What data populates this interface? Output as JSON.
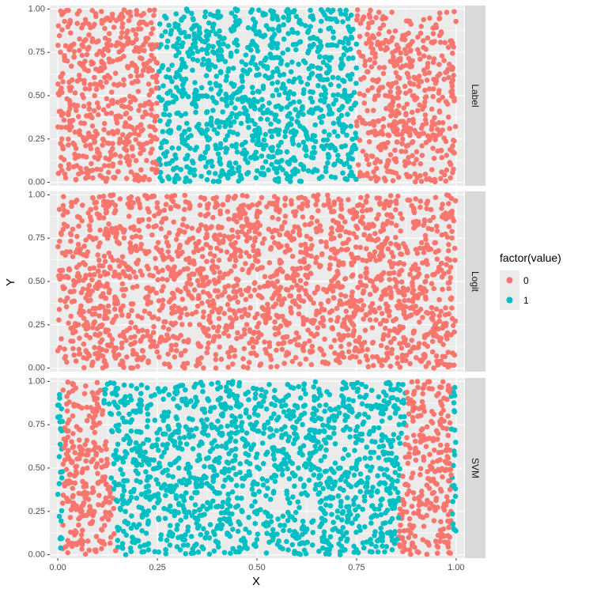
{
  "chart_data": {
    "type": "scatter",
    "xlabel": "X",
    "ylabel": "Y",
    "xlim": [
      -0.02,
      1.02
    ],
    "ylim": [
      -0.02,
      1.02
    ],
    "x_ticks": [
      0.0,
      0.25,
      0.5,
      0.75,
      1.0
    ],
    "y_ticks": [
      0.0,
      0.25,
      0.5,
      0.75,
      1.0
    ],
    "x_tick_labels": [
      "0.00",
      "0.25",
      "0.50",
      "0.75",
      "1.00"
    ],
    "y_tick_labels": [
      "0.00",
      "0.25",
      "0.50",
      "0.75",
      "1.00"
    ],
    "grid": true,
    "points_per_panel": 2000,
    "legend": {
      "title": "factor(value)",
      "position": "right",
      "entries": [
        {
          "label": "0",
          "color": "#F8766D"
        },
        {
          "label": "1",
          "color": "#00BFC4"
        }
      ]
    },
    "panels": [
      {
        "name": "Label",
        "rule": "value = 1 when 0.25 <= X <= 0.75, else 0"
      },
      {
        "name": "Logit",
        "rule": "value = 0 everywhere"
      },
      {
        "name": "SVM",
        "rule": "value = 1 when 0.13 <= X <= 0.87 (boundary slightly curved), plus a thin band near X = 0 and X = 1, else 0"
      }
    ]
  }
}
